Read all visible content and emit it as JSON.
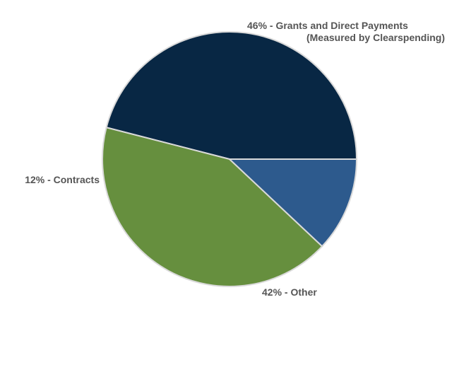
{
  "chart_data": {
    "type": "pie",
    "title": "",
    "slices": [
      {
        "label_line1": "46% - Grants and Direct Payments",
        "label_line2": "(Measured by Clearspending)",
        "value": 46,
        "color": "#082744"
      },
      {
        "label_line1": "42% - Other",
        "label_line2": "",
        "value": 42,
        "color": "#668f3e"
      },
      {
        "label_line1": "12% - Contracts",
        "label_line2": "",
        "value": 12,
        "color": "#2d5a8d"
      }
    ]
  }
}
